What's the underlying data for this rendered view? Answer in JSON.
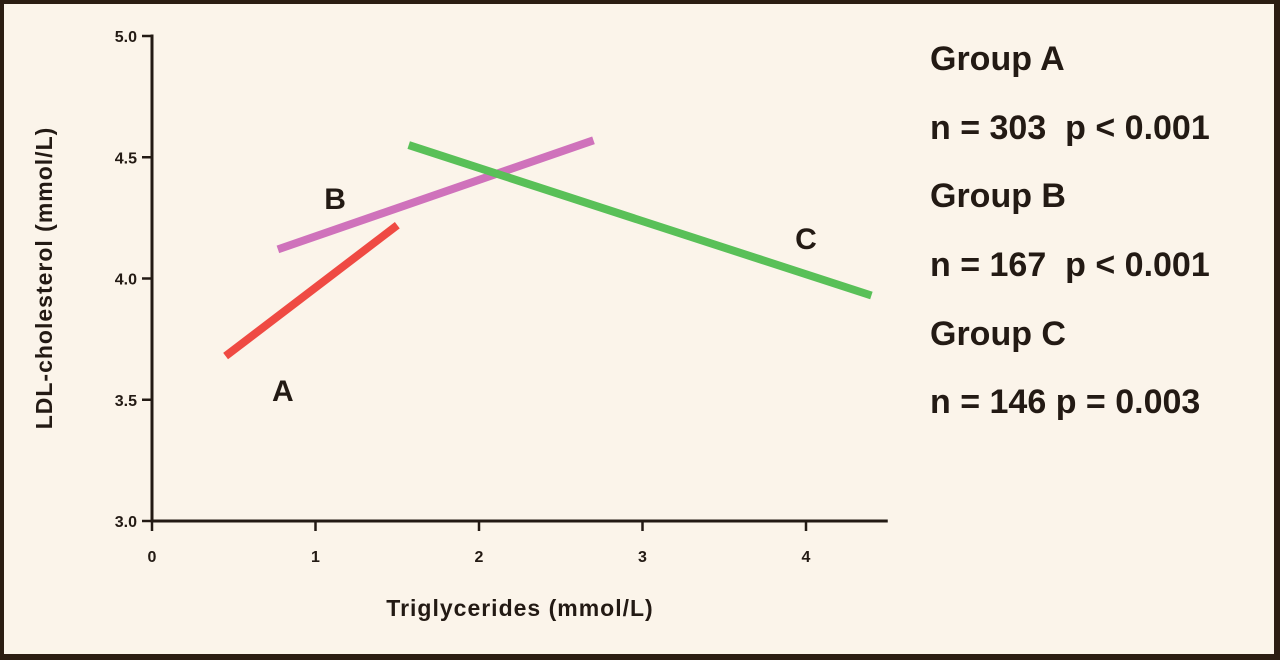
{
  "chart_data": {
    "type": "line",
    "title": "",
    "xlabel": "Triglycerides (mmol/L)",
    "ylabel": "LDL-cholesterol (mmol/L)",
    "xlim": [
      0,
      4.5
    ],
    "ylim": [
      3.0,
      5.0
    ],
    "x_ticks": [
      "0",
      "1",
      "2",
      "3",
      "4"
    ],
    "y_ticks": [
      "3.0",
      "3.5",
      "4.0",
      "4.5",
      "5.0"
    ],
    "grid": false,
    "series": [
      {
        "name": "A",
        "color": "#ef4a43",
        "x": [
          0.45,
          1.5
        ],
        "y": [
          3.68,
          4.22
        ]
      },
      {
        "name": "B",
        "color": "#cf72bb",
        "x": [
          0.77,
          2.7
        ],
        "y": [
          4.12,
          4.57
        ]
      },
      {
        "name": "C",
        "color": "#59c058",
        "x": [
          1.57,
          4.4
        ],
        "y": [
          4.55,
          3.93
        ]
      }
    ],
    "legend": [
      {
        "group": "Group A",
        "stats": "n = 303  p < 0.001"
      },
      {
        "group": "Group B",
        "stats": "n = 167  p < 0.001"
      },
      {
        "group": "Group C",
        "stats": "n = 146 p = 0.003"
      }
    ]
  }
}
